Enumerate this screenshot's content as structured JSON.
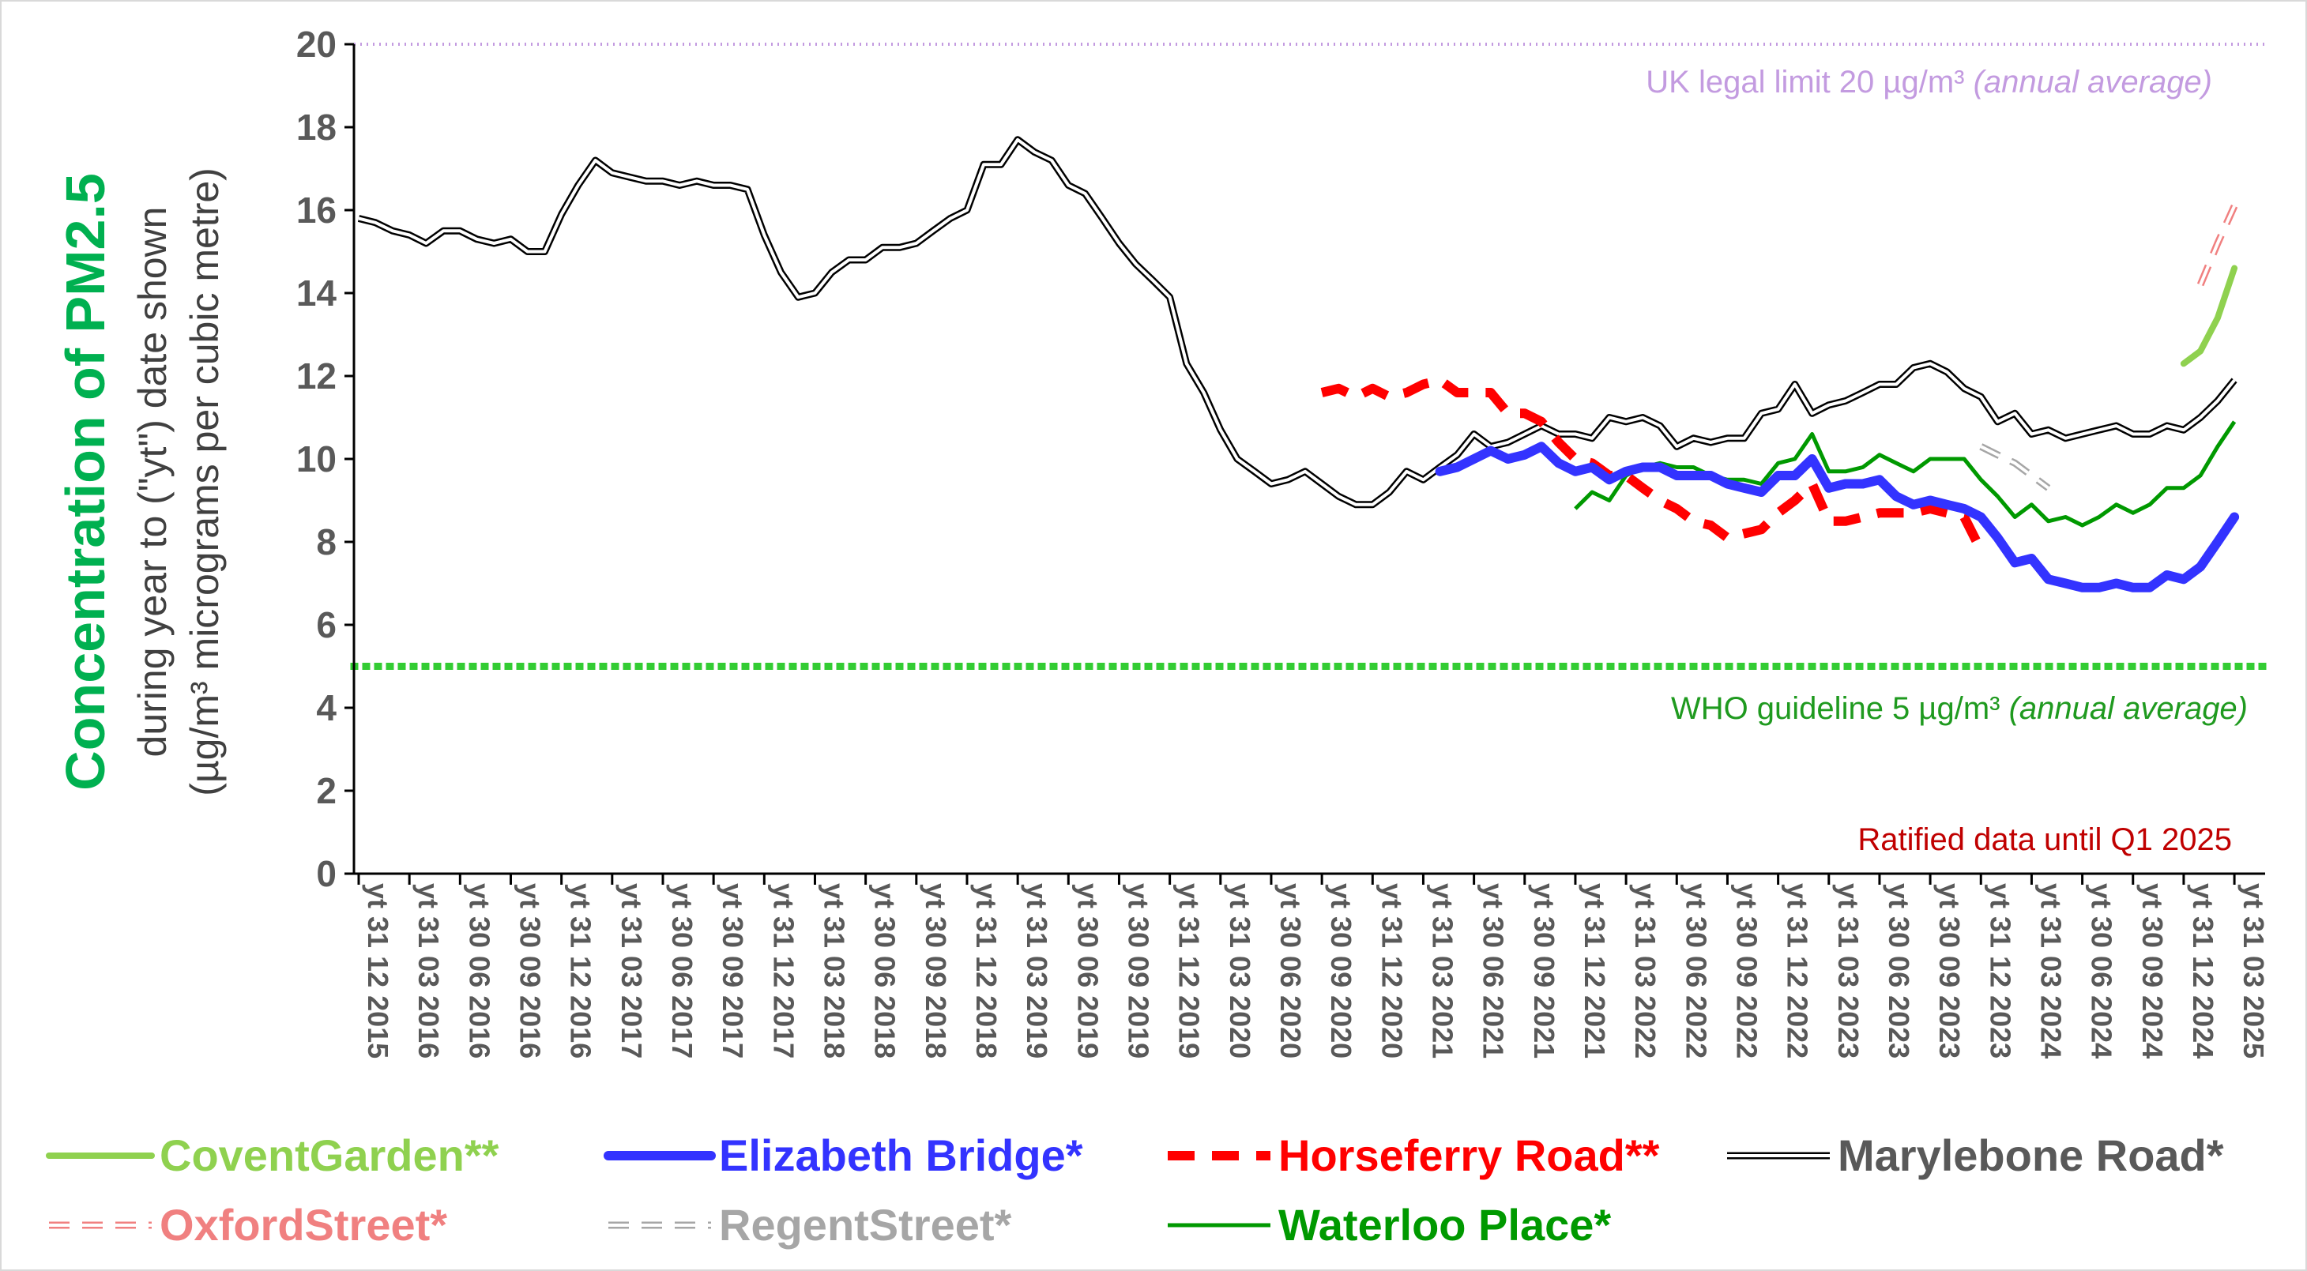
{
  "chart_data": {
    "type": "line",
    "ylabel_main": "Concentration of PM2.5",
    "ylabel_sub1": "during year to (\"yt\") date shown",
    "ylabel_sub2": "(µg/m³ micrograms per cubic metre)",
    "ylim": [
      0,
      20
    ],
    "yticks": [
      0,
      2,
      4,
      6,
      8,
      10,
      12,
      14,
      16,
      18,
      20
    ],
    "grid": false,
    "legend_position": "bottom",
    "x_tick_labels": [
      "yt 31 12 2015",
      "yt 31 03 2016",
      "yt 30 06 2016",
      "yt 30 09 2016",
      "yt 31 12 2016",
      "yt 31 03 2017",
      "yt 30 06 2017",
      "yt 30 09 2017",
      "yt 31 12 2017",
      "yt 31 03 2018",
      "yt 30 06 2018",
      "yt 30 09 2018",
      "yt 31 12 2018",
      "yt 31 03 2019",
      "yt 30 06 2019",
      "yt 30 09 2019",
      "yt 31 12 2019",
      "yt 31 03 2020",
      "yt 30 06 2020",
      "yt 30 09 2020",
      "yt 31 12 2020",
      "yt 31 03 2021",
      "yt 30 06 2021",
      "yt 30 09 2021",
      "yt 31 12 2021",
      "yt 31 03 2022",
      "yt 30 06 2022",
      "yt 30 09 2022",
      "yt 31 12 2022",
      "yt 31 03 2023",
      "yt 30 06 2023",
      "yt 30 09 2023",
      "yt 31 12 2023",
      "yt 31 03 2024",
      "yt 30 06 2024",
      "yt 30 09 2024",
      "yt 31 12 2024",
      "yt 31 03 2025"
    ],
    "reference_lines": [
      {
        "name": "UK legal limit",
        "value": 20,
        "color": "#c39be0",
        "label": "UK legal limit 20 µg/m³ ",
        "label_italic": "(annual average)"
      },
      {
        "name": "WHO guideline",
        "value": 5,
        "color": "#33cc33",
        "label": "WHO guideline 5 µg/m³ ",
        "label_italic": "(annual average)",
        "label_color": "#1f9a1f"
      }
    ],
    "annotation": {
      "text": "Ratified data until Q1 2025",
      "color": "#c00000"
    },
    "series": [
      {
        "name": "Marylebone Road*",
        "color": "#000000",
        "label_color": "#595959",
        "style": "double",
        "x": [
          0,
          0.33,
          0.67,
          1,
          1.33,
          1.67,
          2,
          2.33,
          2.67,
          3,
          3.33,
          3.67,
          4,
          4.33,
          4.67,
          5,
          5.33,
          5.67,
          6,
          6.33,
          6.67,
          7,
          7.33,
          7.67,
          8,
          8.33,
          8.67,
          9,
          9.33,
          9.67,
          10,
          10.33,
          10.67,
          11,
          11.33,
          11.67,
          12,
          12.33,
          12.67,
          13,
          13.33,
          13.67,
          14,
          14.33,
          14.67,
          15,
          15.33,
          15.67,
          16,
          16.33,
          16.67,
          17,
          17.33,
          17.67,
          18,
          18.33,
          18.67,
          19,
          19.33,
          19.67,
          20,
          20.33,
          20.67,
          21,
          21.33,
          21.67,
          22,
          22.33,
          22.67,
          23,
          23.33,
          23.67,
          24,
          24.33,
          24.67,
          25,
          25.33,
          25.67,
          26,
          26.33,
          26.67,
          27,
          27.33,
          27.67,
          28,
          28.33,
          28.67,
          29,
          29.33,
          29.67,
          30,
          30.33,
          30.67,
          31,
          31.33,
          31.67,
          32,
          32.33,
          32.67,
          33,
          33.33,
          33.67,
          34,
          34.33,
          34.67,
          35,
          35.33,
          35.67,
          36,
          36.33,
          36.67,
          37
        ],
        "y": [
          15.8,
          15.7,
          15.5,
          15.4,
          15.2,
          15.5,
          15.5,
          15.3,
          15.2,
          15.3,
          15.0,
          15.0,
          15.9,
          16.6,
          17.2,
          16.9,
          16.8,
          16.7,
          16.7,
          16.6,
          16.7,
          16.6,
          16.6,
          16.5,
          15.4,
          14.5,
          13.9,
          14.0,
          14.5,
          14.8,
          14.8,
          15.1,
          15.1,
          15.2,
          15.5,
          15.8,
          16.0,
          17.1,
          17.1,
          17.7,
          17.4,
          17.2,
          16.6,
          16.4,
          15.8,
          15.2,
          14.7,
          14.3,
          13.9,
          12.3,
          11.6,
          10.7,
          10.0,
          9.7,
          9.4,
          9.5,
          9.7,
          9.4,
          9.1,
          8.9,
          8.9,
          9.2,
          9.7,
          9.5,
          9.8,
          10.1,
          10.6,
          10.3,
          10.4,
          10.6,
          10.8,
          10.6,
          10.6,
          10.5,
          11.0,
          10.9,
          11.0,
          10.8,
          10.3,
          10.5,
          10.4,
          10.5,
          10.5,
          11.1,
          11.2,
          11.8,
          11.1,
          11.3,
          11.4,
          11.6,
          11.8,
          11.8,
          12.2,
          12.3,
          12.1,
          11.7,
          11.5,
          10.9,
          11.1,
          10.6,
          10.7,
          10.5,
          10.6,
          10.7,
          10.8,
          10.6,
          10.6,
          10.8,
          10.7,
          11.0,
          11.4,
          11.9
        ]
      },
      {
        "name": "Elizabeth Bridge*",
        "color": "#3333ff",
        "label_color": "#3333ff",
        "style": "thick",
        "x": [
          21.33,
          21.67,
          22,
          22.33,
          22.67,
          23,
          23.33,
          23.67,
          24,
          24.33,
          24.67,
          25,
          25.33,
          25.67,
          26,
          26.33,
          26.67,
          27,
          27.33,
          27.67,
          28,
          28.33,
          28.67,
          29,
          29.33,
          29.67,
          30,
          30.33,
          30.67,
          31,
          31.33,
          31.67,
          32,
          32.33,
          32.67,
          33,
          33.33,
          33.67,
          34,
          34.33,
          34.67,
          35,
          35.33,
          35.67,
          36,
          36.33,
          36.67,
          37
        ],
        "y": [
          9.7,
          9.8,
          10.0,
          10.2,
          10.0,
          10.1,
          10.3,
          9.9,
          9.7,
          9.8,
          9.5,
          9.7,
          9.8,
          9.8,
          9.6,
          9.6,
          9.6,
          9.4,
          9.3,
          9.2,
          9.6,
          9.6,
          10.0,
          9.3,
          9.4,
          9.4,
          9.5,
          9.1,
          8.9,
          9.0,
          8.9,
          8.8,
          8.6,
          8.1,
          7.5,
          7.6,
          7.1,
          7.0,
          6.9,
          6.9,
          7.0,
          6.9,
          6.9,
          7.2,
          7.1,
          7.4,
          8.0,
          8.6
        ]
      },
      {
        "name": "Horseferry Road**",
        "color": "#ff0000",
        "label_color": "#ff0000",
        "style": "dashed",
        "x": [
          19,
          19.33,
          19.67,
          20,
          20.33,
          20.67,
          21,
          21.33,
          21.67,
          22,
          22.33,
          22.67,
          23,
          23.33,
          23.67,
          24,
          24.33,
          24.67,
          25,
          25.33,
          25.67,
          26,
          26.33,
          26.67,
          27,
          27.33,
          27.67,
          28,
          28.33,
          28.67,
          29,
          29.33,
          29.67,
          30,
          30.33,
          30.67,
          31,
          31.33,
          31.67,
          32
        ],
        "y": [
          11.6,
          11.7,
          11.5,
          11.7,
          11.5,
          11.6,
          11.8,
          11.9,
          11.6,
          11.6,
          11.6,
          11.1,
          11.1,
          10.9,
          10.4,
          10.0,
          9.9,
          9.6,
          9.6,
          9.3,
          9.0,
          8.8,
          8.5,
          8.4,
          8.1,
          8.2,
          8.3,
          8.7,
          9.0,
          9.4,
          8.5,
          8.5,
          8.6,
          8.7,
          8.7,
          8.7,
          8.8,
          8.7,
          8.6,
          7.8
        ]
      },
      {
        "name": "Waterloo Place*",
        "color": "#009900",
        "label_color": "#009900",
        "style": "solid",
        "x": [
          24,
          24.33,
          24.67,
          25,
          25.33,
          25.67,
          26,
          26.33,
          26.67,
          27,
          27.33,
          27.67,
          28,
          28.33,
          28.67,
          29,
          29.33,
          29.67,
          30,
          30.33,
          30.67,
          31,
          31.33,
          31.67,
          32,
          32.33,
          32.67,
          33,
          33.33,
          33.67,
          34,
          34.33,
          34.67,
          35,
          35.33,
          35.67,
          36,
          36.33,
          36.67,
          37
        ],
        "y": [
          8.8,
          9.2,
          9.0,
          9.6,
          9.8,
          9.9,
          9.8,
          9.8,
          9.6,
          9.5,
          9.5,
          9.4,
          9.9,
          10.0,
          10.6,
          9.7,
          9.7,
          9.8,
          10.1,
          9.9,
          9.7,
          10.0,
          10.0,
          10.0,
          9.5,
          9.1,
          8.6,
          8.9,
          8.5,
          8.6,
          8.4,
          8.6,
          8.9,
          8.7,
          8.9,
          9.3,
          9.3,
          9.6,
          10.3,
          10.9
        ]
      },
      {
        "name": "CoventGarden**",
        "color": "#8fd14f",
        "label_color": "#8fd14f",
        "style": "solid_thick",
        "x": [
          36,
          36.33,
          36.67,
          37
        ],
        "y": [
          12.3,
          12.6,
          13.4,
          14.6
        ]
      },
      {
        "name": "OxfordStreet*",
        "color": "#f08080",
        "label_color": "#f08080",
        "style": "double_dashed",
        "x": [
          36.33,
          36.67,
          37
        ],
        "y": [
          14.2,
          15.2,
          16.1
        ]
      },
      {
        "name": "RegentStreet*",
        "color": "#a6a6a6",
        "label_color": "#a6a6a6",
        "style": "double_dashed",
        "x": [
          32,
          32.33,
          32.67,
          33,
          33.33
        ],
        "y": [
          10.3,
          10.1,
          9.9,
          9.6,
          9.3
        ]
      }
    ],
    "legend_order": [
      "CoventGarden**",
      "Elizabeth Bridge*",
      "Horseferry Road**",
      "Marylebone Road*",
      "OxfordStreet*",
      "RegentStreet*",
      "Waterloo Place*"
    ]
  }
}
